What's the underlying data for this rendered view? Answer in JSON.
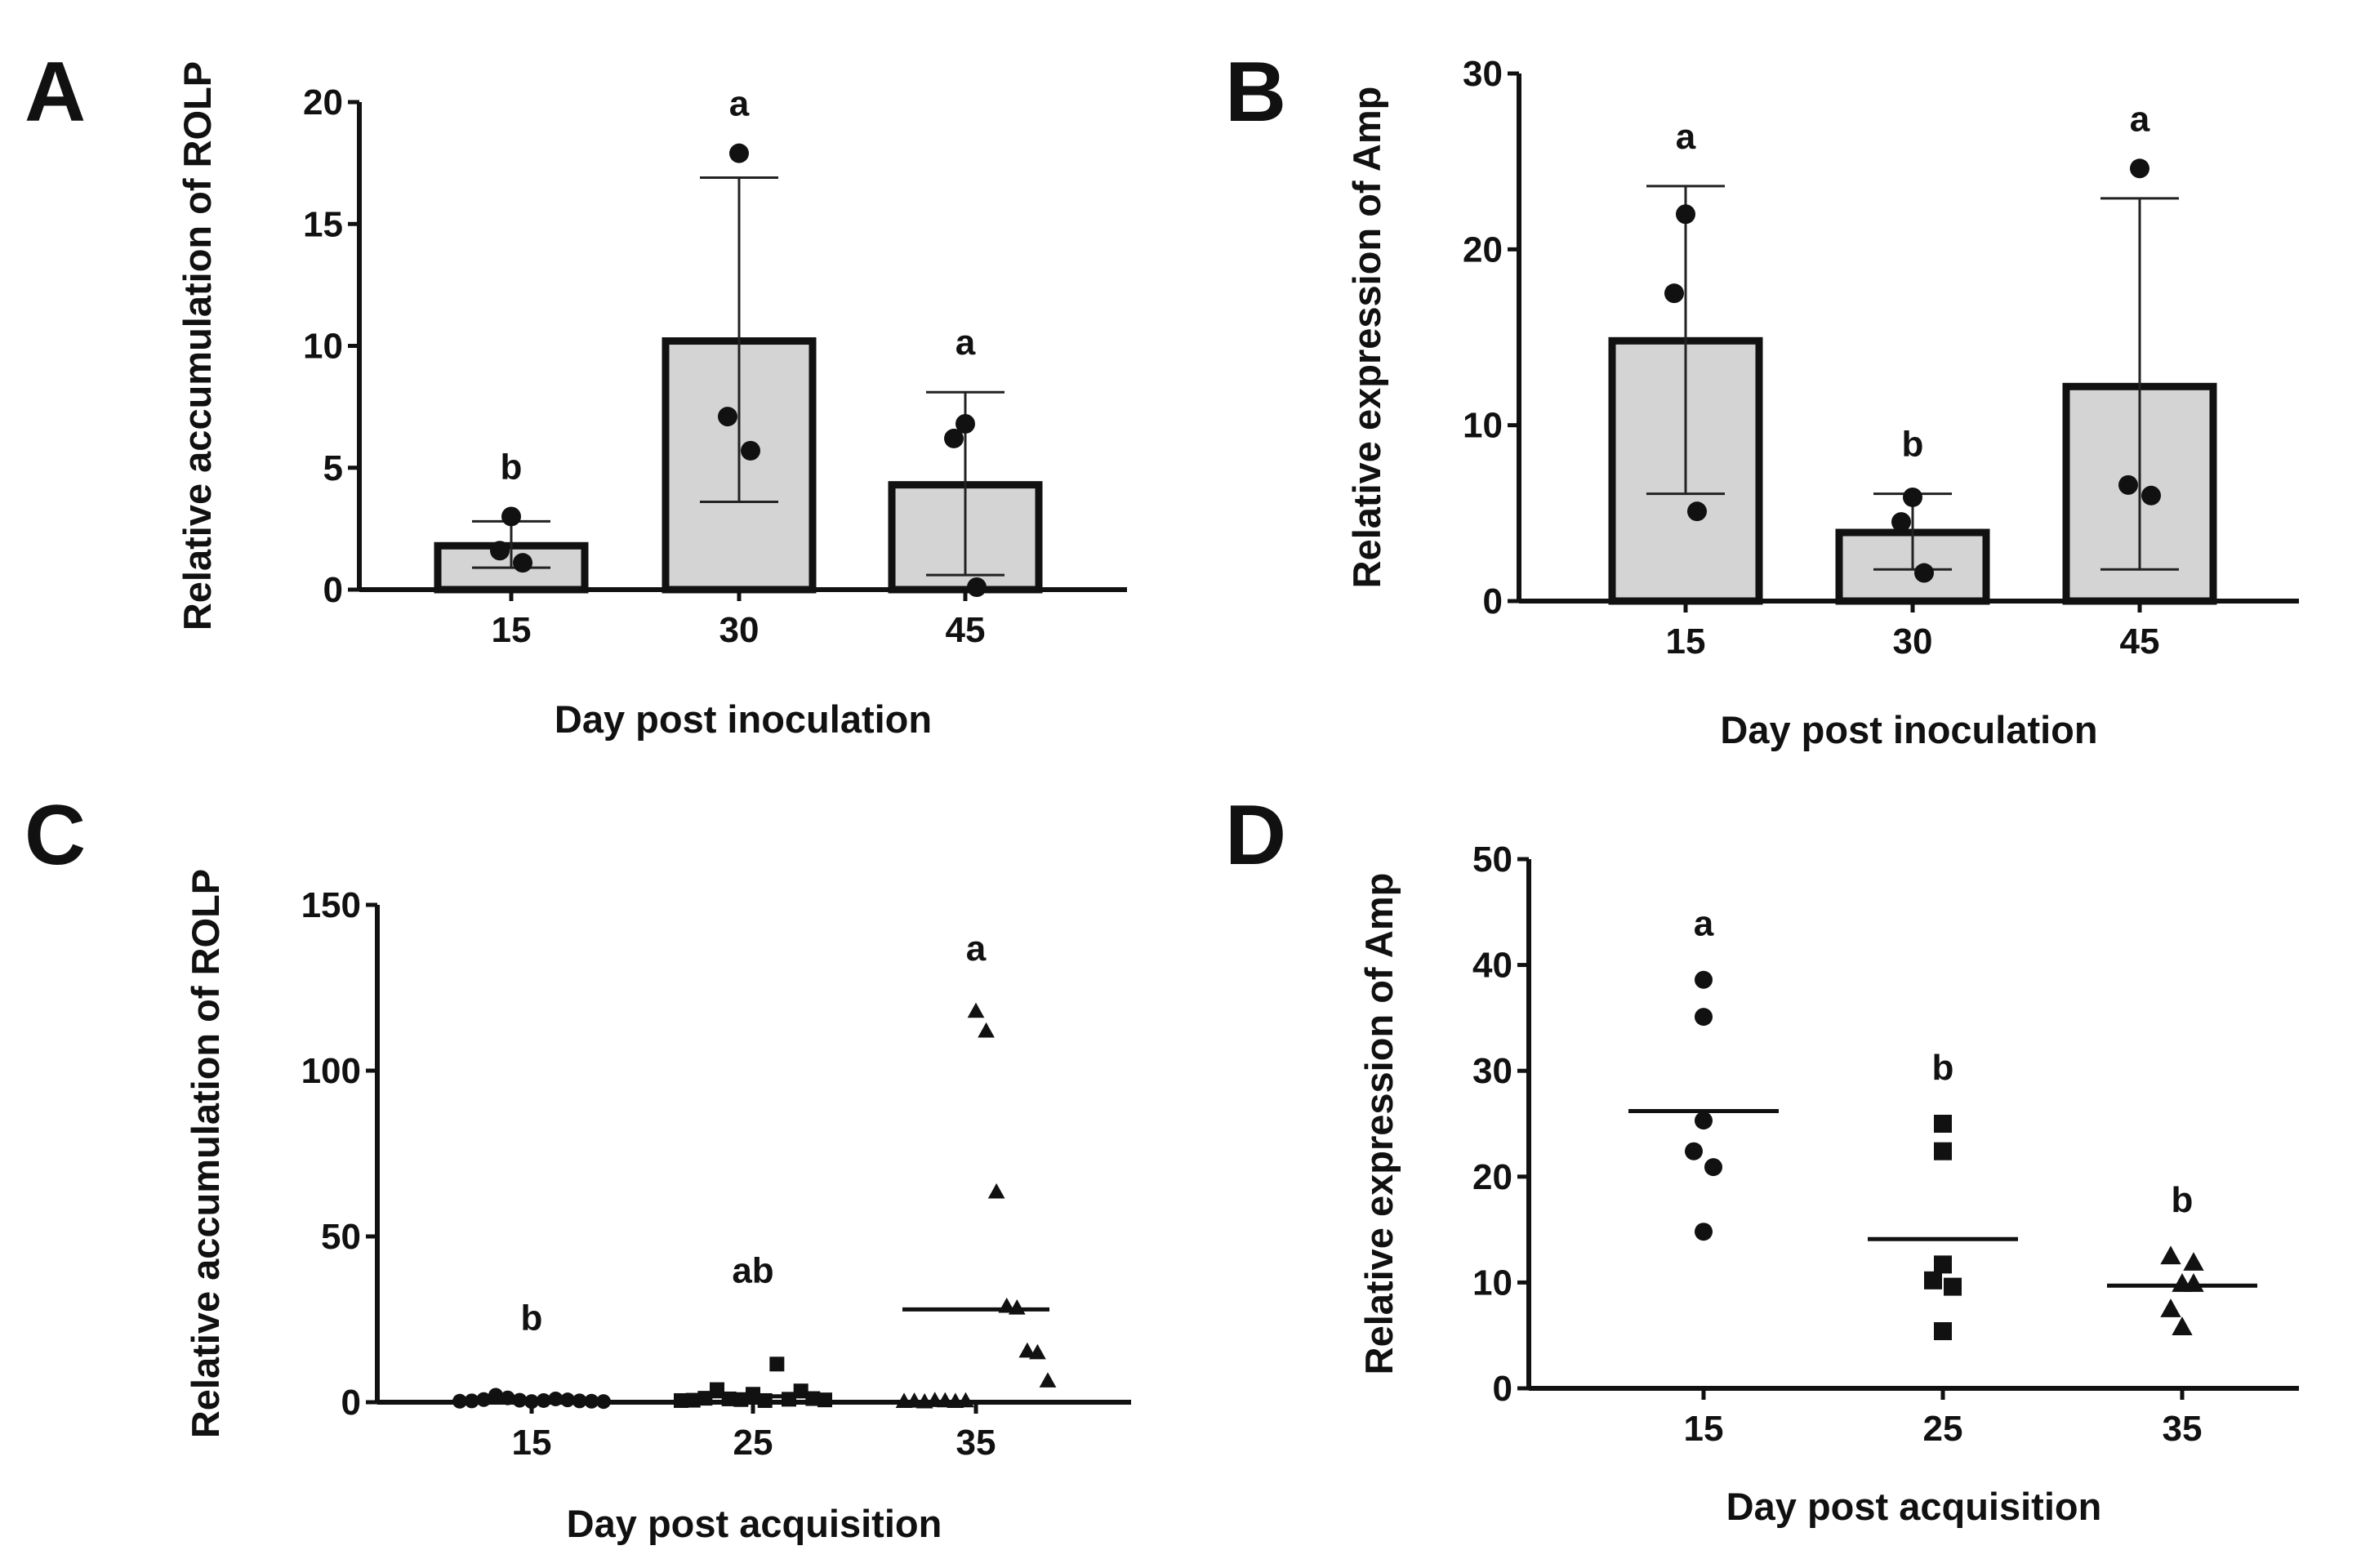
{
  "chart_data": [
    {
      "panel": "A",
      "type": "bar",
      "xlabel": "Day post inoculation",
      "ylabel": "Relative accumulation of ROLP",
      "categories": [
        "15",
        "30",
        "45"
      ],
      "values": [
        1.8,
        10.2,
        4.3
      ],
      "error_upper": [
        2.8,
        16.9,
        8.1
      ],
      "error_lower": [
        0.9,
        3.6,
        0.6
      ],
      "significance": [
        "b",
        "a",
        "a"
      ],
      "points": [
        [
          3.0,
          1.6,
          1.1
        ],
        [
          17.9,
          7.1,
          5.7
        ],
        [
          6.8,
          6.2,
          0.1
        ]
      ],
      "marker": "circle",
      "ylim": [
        0,
        20
      ],
      "yticks": [
        "0",
        "5",
        "10",
        "15",
        "20"
      ],
      "ytick_values": [
        0,
        5,
        10,
        15,
        20
      ]
    },
    {
      "panel": "B",
      "type": "bar",
      "xlabel": "Day post inoculation",
      "ylabel": "Relative expression of Amp",
      "categories": [
        "15",
        "30",
        "45"
      ],
      "values": [
        14.8,
        3.9,
        12.2
      ],
      "error_upper": [
        23.6,
        6.1,
        22.9
      ],
      "error_lower": [
        6.1,
        1.8,
        1.8
      ],
      "significance": [
        "a",
        "b",
        "a"
      ],
      "points": [
        [
          22.0,
          17.5,
          5.1
        ],
        [
          5.9,
          4.5,
          1.6
        ],
        [
          24.6,
          6.6,
          6.0
        ]
      ],
      "marker": "circle",
      "ylim": [
        0,
        30
      ],
      "yticks": [
        "0",
        "10",
        "20",
        "30"
      ],
      "ytick_values": [
        0,
        10,
        20,
        30
      ]
    },
    {
      "panel": "C",
      "type": "scatter",
      "xlabel": "Day post acquisition",
      "ylabel": "Relative accumulation of ROLP",
      "categories": [
        "15",
        "25",
        "35"
      ],
      "means": [
        0.7,
        1.8,
        28.0
      ],
      "significance": [
        "b",
        "ab",
        "a"
      ],
      "markers": [
        "circle",
        "square",
        "triangle"
      ],
      "points": [
        [
          0.3,
          0.4,
          0.8,
          2.1,
          1.3,
          0.6,
          0.2,
          0.5,
          1.0,
          0.7,
          0.4,
          0.3,
          0.2
        ],
        [
          0.5,
          0.6,
          1.2,
          3.8,
          1.0,
          0.8,
          2.4,
          0.5,
          11.5,
          0.9,
          3.4,
          1.1,
          0.7
        ],
        [
          0.3,
          0.4,
          0.2,
          0.6,
          0.5,
          0.3,
          0.5,
          118.0,
          112.0,
          63.5,
          29.0,
          28.5,
          15.5,
          15.0,
          6.5
        ]
      ],
      "ylim": [
        0,
        150
      ],
      "yticks": [
        "0",
        "50",
        "100",
        "150"
      ],
      "ytick_values": [
        0,
        50,
        100,
        150
      ]
    },
    {
      "panel": "D",
      "type": "scatter",
      "xlabel": "Day post acquisition",
      "ylabel": "Relative expression of Amp",
      "categories": [
        "15",
        "25",
        "35"
      ],
      "means": [
        26.2,
        14.1,
        9.7
      ],
      "significance": [
        "a",
        "b",
        "b"
      ],
      "markers": [
        "circle",
        "square",
        "triangle"
      ],
      "points": [
        [
          38.6,
          35.1,
          25.3,
          22.4,
          20.9,
          14.8
        ],
        [
          25.0,
          22.4,
          11.7,
          10.2,
          9.6,
          5.4
        ],
        [
          12.5,
          11.9,
          9.9,
          7.5,
          9.9,
          5.8
        ]
      ],
      "ylim": [
        0,
        50
      ],
      "yticks": [
        "0",
        "10",
        "20",
        "30",
        "40",
        "50"
      ],
      "ytick_values": [
        0,
        10,
        20,
        30,
        40,
        50
      ]
    }
  ]
}
